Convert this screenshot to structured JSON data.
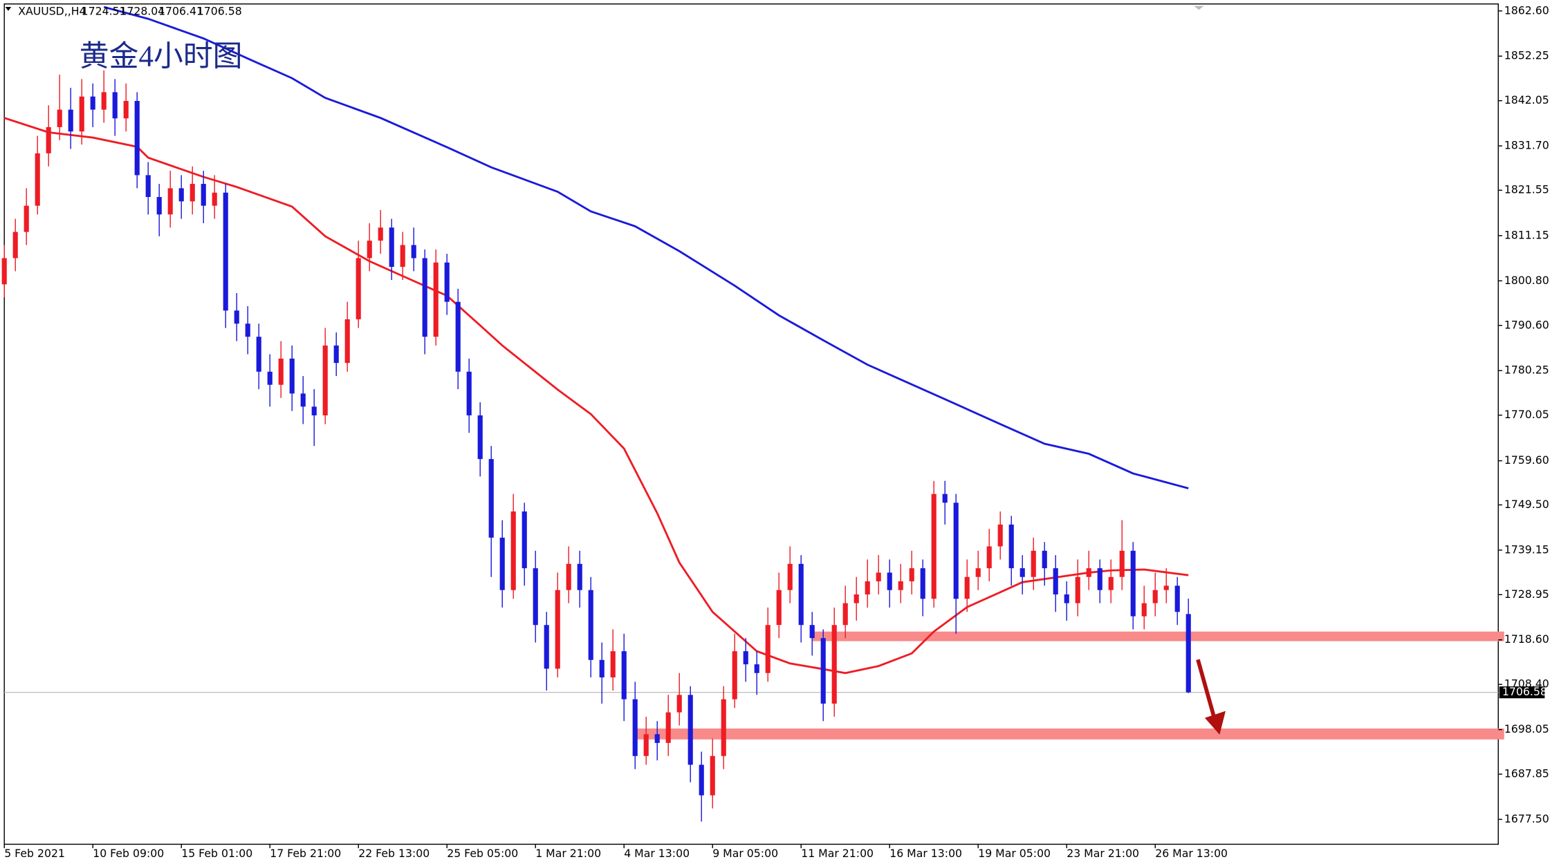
{
  "chart_data": {
    "type": "candlestick",
    "title": "黄金4小时图",
    "symbol": "XAUUSD,,H4",
    "categories": [
      "5 Feb 2021",
      null,
      null,
      null,
      null,
      null,
      null,
      null,
      "10 Feb 09:00",
      null,
      null,
      null,
      null,
      null,
      null,
      null,
      "15 Feb 01:00",
      null,
      null,
      null,
      null,
      null,
      null,
      null,
      "17 Feb 21:00",
      null,
      null,
      null,
      null,
      null,
      null,
      null,
      "22 Feb 13:00",
      null,
      null,
      null,
      null,
      null,
      null,
      null,
      "25 Feb 05:00",
      null,
      null,
      null,
      null,
      null,
      null,
      null,
      "1 Mar 21:00",
      null,
      null,
      null,
      null,
      null,
      null,
      null,
      "4 Mar 13:00",
      null,
      null,
      null,
      null,
      null,
      null,
      null,
      "9 Mar 05:00",
      null,
      null,
      null,
      null,
      null,
      null,
      null,
      "11 Mar 21:00",
      null,
      null,
      null,
      null,
      null,
      null,
      null,
      "16 Mar 13:00",
      null,
      null,
      null,
      null,
      null,
      null,
      null,
      "19 Mar 05:00",
      null,
      null,
      null,
      null,
      null,
      null,
      null,
      "23 Mar 21:00",
      null,
      null,
      null,
      null,
      null,
      null,
      null,
      "26 Mar 13:00",
      null,
      null,
      null
    ],
    "candles": [
      [
        1800,
        1809,
        1797,
        1806
      ],
      [
        1806,
        1815,
        1803,
        1812
      ],
      [
        1812,
        1822,
        1809,
        1818
      ],
      [
        1818,
        1834,
        1816,
        1830
      ],
      [
        1830,
        1841,
        1827,
        1836
      ],
      [
        1836,
        1848,
        1833,
        1840
      ],
      [
        1840,
        1845,
        1831,
        1835
      ],
      [
        1835,
        1847,
        1832,
        1843
      ],
      [
        1843,
        1846,
        1836,
        1840
      ],
      [
        1840,
        1849,
        1837,
        1844
      ],
      [
        1844,
        1847,
        1834,
        1838
      ],
      [
        1838,
        1846,
        1835,
        1842
      ],
      [
        1842,
        1844,
        1822,
        1825
      ],
      [
        1825,
        1828,
        1816,
        1820
      ],
      [
        1820,
        1823,
        1811,
        1816
      ],
      [
        1816,
        1826,
        1813,
        1822
      ],
      [
        1822,
        1825,
        1815,
        1819
      ],
      [
        1819,
        1827,
        1816,
        1823
      ],
      [
        1823,
        1826,
        1814,
        1818
      ],
      [
        1818,
        1825,
        1815,
        1821
      ],
      [
        1821,
        1823,
        1790,
        1794
      ],
      [
        1794,
        1798,
        1787,
        1791
      ],
      [
        1791,
        1795,
        1784,
        1788
      ],
      [
        1788,
        1791,
        1776,
        1780
      ],
      [
        1780,
        1784,
        1772,
        1777
      ],
      [
        1777,
        1787,
        1774,
        1783
      ],
      [
        1783,
        1786,
        1771,
        1775
      ],
      [
        1775,
        1779,
        1768,
        1772
      ],
      [
        1772,
        1776,
        1763,
        1770
      ],
      [
        1770,
        1790,
        1768,
        1786
      ],
      [
        1786,
        1789,
        1779,
        1782
      ],
      [
        1782,
        1796,
        1780,
        1792
      ],
      [
        1792,
        1810,
        1790,
        1806
      ],
      [
        1806,
        1814,
        1803,
        1810
      ],
      [
        1810,
        1817,
        1807,
        1813
      ],
      [
        1813,
        1815,
        1801,
        1804
      ],
      [
        1804,
        1812,
        1801,
        1809
      ],
      [
        1809,
        1813,
        1803,
        1806
      ],
      [
        1806,
        1808,
        1784,
        1788
      ],
      [
        1788,
        1808,
        1786,
        1805
      ],
      [
        1805,
        1807,
        1793,
        1796
      ],
      [
        1796,
        1799,
        1776,
        1780
      ],
      [
        1780,
        1783,
        1766,
        1770
      ],
      [
        1770,
        1773,
        1756,
        1760
      ],
      [
        1760,
        1763,
        1733,
        1742
      ],
      [
        1742,
        1746,
        1726,
        1730
      ],
      [
        1730,
        1752,
        1728,
        1748
      ],
      [
        1748,
        1750,
        1731,
        1735
      ],
      [
        1735,
        1739,
        1718,
        1722
      ],
      [
        1722,
        1725,
        1707,
        1712
      ],
      [
        1712,
        1734,
        1710,
        1730
      ],
      [
        1730,
        1740,
        1727,
        1736
      ],
      [
        1736,
        1739,
        1726,
        1730
      ],
      [
        1730,
        1733,
        1710,
        1714
      ],
      [
        1714,
        1718,
        1704,
        1710
      ],
      [
        1710,
        1721,
        1707,
        1716
      ],
      [
        1716,
        1720,
        1700,
        1705
      ],
      [
        1705,
        1709,
        1689,
        1692
      ],
      [
        1692,
        1701,
        1690,
        1697
      ],
      [
        1697,
        1700,
        1691,
        1695
      ],
      [
        1695,
        1706,
        1692,
        1702
      ],
      [
        1702,
        1711,
        1699,
        1706
      ],
      [
        1706,
        1708,
        1686,
        1690
      ],
      [
        1690,
        1693,
        1677,
        1683
      ],
      [
        1683,
        1696,
        1680,
        1692
      ],
      [
        1692,
        1708,
        1689,
        1705
      ],
      [
        1705,
        1720,
        1703,
        1716
      ],
      [
        1716,
        1719,
        1709,
        1713
      ],
      [
        1713,
        1716,
        1706,
        1711
      ],
      [
        1711,
        1726,
        1709,
        1722
      ],
      [
        1722,
        1734,
        1719,
        1730
      ],
      [
        1730,
        1740,
        1727,
        1736
      ],
      [
        1736,
        1738,
        1718,
        1722
      ],
      [
        1722,
        1725,
        1715,
        1719
      ],
      [
        1719,
        1721,
        1700,
        1704
      ],
      [
        1704,
        1726,
        1701,
        1722
      ],
      [
        1722,
        1731,
        1719,
        1727
      ],
      [
        1727,
        1733,
        1723,
        1729
      ],
      [
        1729,
        1737,
        1726,
        1732
      ],
      [
        1732,
        1738,
        1729,
        1734
      ],
      [
        1734,
        1737,
        1726,
        1730
      ],
      [
        1730,
        1736,
        1727,
        1732
      ],
      [
        1732,
        1739,
        1729,
        1735
      ],
      [
        1735,
        1737,
        1724,
        1728
      ],
      [
        1728,
        1755,
        1726,
        1752
      ],
      [
        1752,
        1755,
        1745,
        1750
      ],
      [
        1750,
        1752,
        1720,
        1728
      ],
      [
        1728,
        1737,
        1725,
        1733
      ],
      [
        1733,
        1739,
        1730,
        1735
      ],
      [
        1735,
        1744,
        1732,
        1740
      ],
      [
        1740,
        1748,
        1737,
        1745
      ],
      [
        1745,
        1747,
        1731,
        1735
      ],
      [
        1735,
        1738,
        1729,
        1733
      ],
      [
        1733,
        1742,
        1730,
        1739
      ],
      [
        1739,
        1741,
        1731,
        1735
      ],
      [
        1735,
        1738,
        1725,
        1729
      ],
      [
        1729,
        1732,
        1723,
        1727
      ],
      [
        1727,
        1737,
        1724,
        1733
      ],
      [
        1733,
        1739,
        1730,
        1735
      ],
      [
        1735,
        1737,
        1727,
        1730
      ],
      [
        1730,
        1737,
        1727,
        1733
      ],
      [
        1733,
        1746,
        1730,
        1739
      ],
      [
        1739,
        1741,
        1721,
        1724
      ],
      [
        1724,
        1731,
        1721,
        1727
      ],
      [
        1727,
        1734,
        1724,
        1730
      ],
      [
        1730,
        1735,
        1727,
        1731
      ],
      [
        1731,
        1733,
        1722,
        1725
      ],
      [
        1724.51,
        1728.04,
        1706.41,
        1706.58
      ]
    ],
    "up_color": "#ee1c24",
    "down_color": "#1a1adb",
    "series": [
      {
        "color": "#ee1c24",
        "x": [
          0,
          4,
          8,
          12,
          13,
          18,
          21,
          26,
          29,
          33,
          36,
          40,
          43,
          45,
          50,
          53,
          56,
          59,
          61,
          64,
          66,
          68,
          71,
          74,
          76,
          79,
          82,
          84,
          87,
          90,
          92,
          95,
          98,
          100,
          103,
          107
        ],
        "values": [
          1838.1,
          1834.8,
          1833.6,
          1831.5,
          1829,
          1824.6,
          1822.3,
          1817.8,
          1811,
          1805.3,
          1801.9,
          1797.4,
          1790.6,
          1786,
          1775.9,
          1770.3,
          1762.4,
          1747.6,
          1736.3,
          1725,
          1720.5,
          1716,
          1713.2,
          1711.9,
          1711,
          1712.6,
          1715.5,
          1720.5,
          1726.1,
          1729.5,
          1731.8,
          1732.9,
          1734,
          1734.5,
          1734.7,
          1733.4
        ]
      },
      {
        "color": "#1a1adb",
        "x": [
          9,
          13,
          18,
          22,
          26,
          29,
          34,
          40,
          44,
          50,
          53,
          57,
          61,
          66,
          70,
          74,
          78,
          85,
          90,
          94,
          98,
          102,
          107
        ],
        "values": [
          1863.5,
          1860.8,
          1856.3,
          1851.7,
          1847.2,
          1842.7,
          1838.1,
          1831.4,
          1826.8,
          1821.2,
          1816.7,
          1813.3,
          1807.6,
          1799.7,
          1792.9,
          1787.2,
          1781.6,
          1773.7,
          1768,
          1763.5,
          1761.2,
          1756.7,
          1753.3
        ]
      }
    ],
    "zones": [
      {
        "x0": 73,
        "range": [
          1718.3,
          1720.5
        ],
        "color": "#f88a8a"
      },
      {
        "x0": 57,
        "range": [
          1695.8,
          1698.3
        ],
        "color": "#f88a8a"
      }
    ],
    "ylim": [
      1671.8,
      1864.2
    ],
    "yticks": [
      {
        "value": 1862.6,
        "label": "1862.60"
      },
      {
        "value": 1852.25,
        "label": "1852.25"
      },
      {
        "value": 1842.05,
        "label": "1842.05"
      },
      {
        "value": 1831.7,
        "label": "1831.70"
      },
      {
        "value": 1821.55,
        "label": "1821.55"
      },
      {
        "value": 1811.15,
        "label": "1811.15"
      },
      {
        "value": 1800.8,
        "label": "1800.80"
      },
      {
        "value": 1790.6,
        "label": "1790.60"
      },
      {
        "value": 1780.25,
        "label": "1780.25"
      },
      {
        "value": 1770.05,
        "label": "1770.05"
      },
      {
        "value": 1759.6,
        "label": "1759.60"
      },
      {
        "value": 1749.5,
        "label": "1749.50"
      },
      {
        "value": 1739.15,
        "label": "1739.15"
      },
      {
        "value": 1728.95,
        "label": "1728.95"
      },
      {
        "value": 1718.6,
        "label": "1718.60"
      },
      {
        "value": 1708.4,
        "label": "1708.40"
      },
      {
        "value": 1698.05,
        "label": "1698.05"
      },
      {
        "value": 1687.85,
        "label": "1687.85"
      },
      {
        "value": 1677.5,
        "label": "1677.50"
      }
    ]
  }
}
